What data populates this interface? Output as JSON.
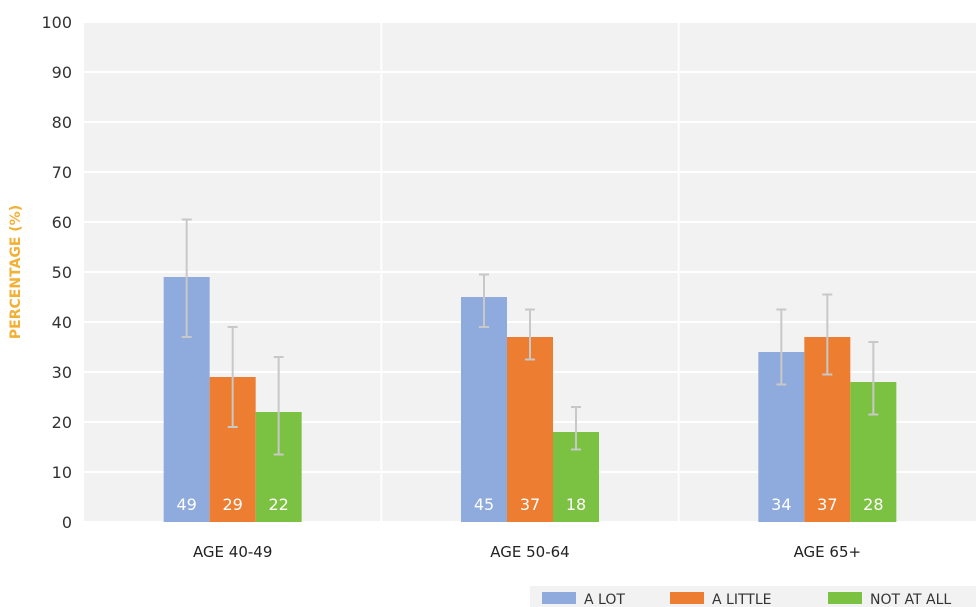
{
  "chart_data": {
    "type": "bar",
    "categories": [
      "AGE 40-49",
      "AGE 50-64",
      "AGE 65+"
    ],
    "series": [
      {
        "name": "A LOT",
        "color": "#8faadc",
        "values": [
          49,
          45,
          34
        ],
        "error_low": [
          37,
          39,
          27.5
        ],
        "error_high": [
          60.5,
          49.5,
          42.5
        ]
      },
      {
        "name": "A LITTLE",
        "color": "#ed7d31",
        "values": [
          29,
          37,
          37
        ],
        "error_low": [
          19,
          32.5,
          29.5
        ],
        "error_high": [
          39,
          42.5,
          45.5
        ]
      },
      {
        "name": "NOT AT ALL",
        "color": "#7cc242",
        "values": [
          22,
          18,
          28
        ],
        "error_low": [
          13.5,
          14.5,
          21.5
        ],
        "error_high": [
          33,
          23,
          36
        ]
      }
    ],
    "title": "",
    "xlabel": "",
    "ylabel": "PERCENTAGE (%)",
    "ylim": [
      0,
      100
    ],
    "yticks": [
      0,
      10,
      20,
      30,
      40,
      50,
      60,
      70,
      80,
      90,
      100
    ],
    "grid": true,
    "legend_position": "bottom-right",
    "plot_background": "#f2f2f2"
  }
}
